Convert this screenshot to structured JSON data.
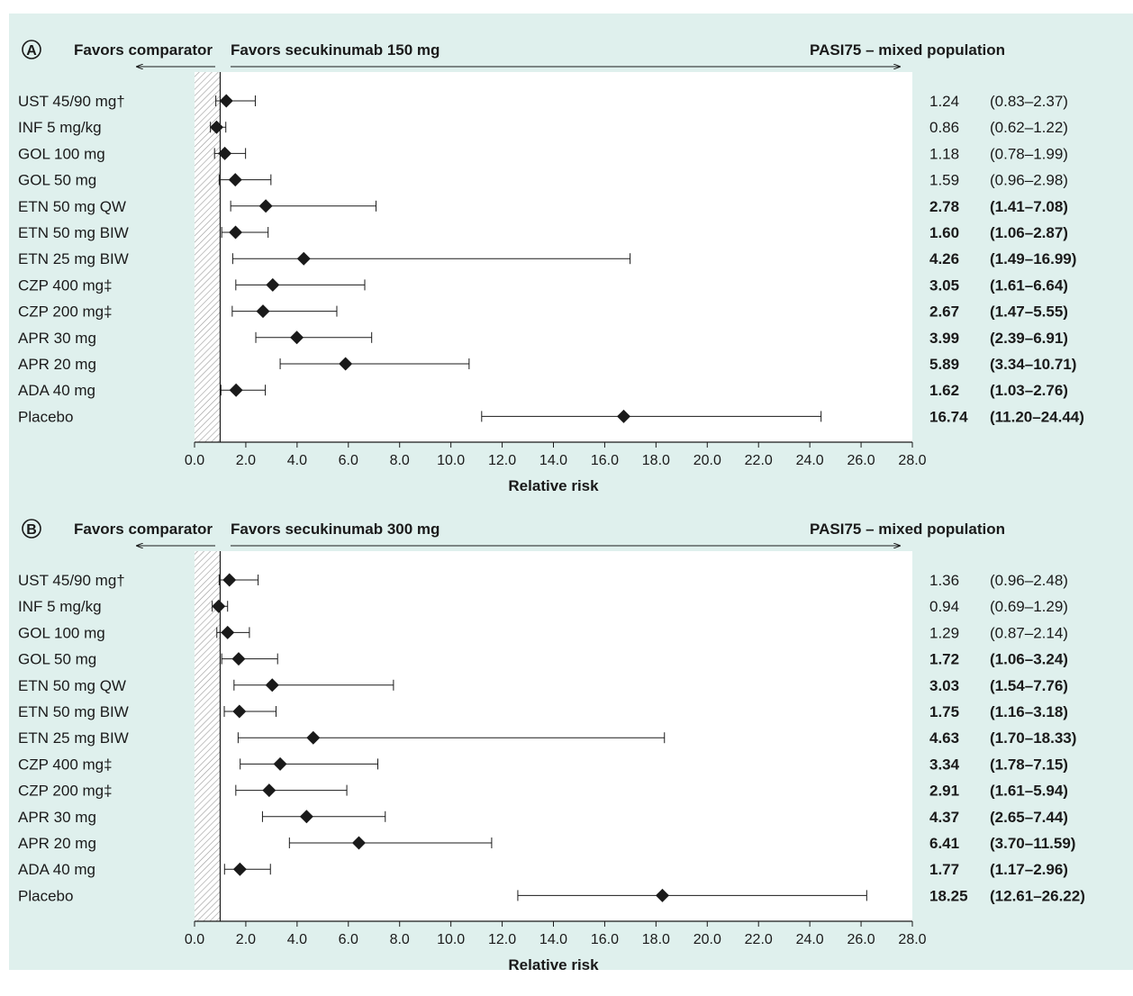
{
  "colors": {
    "background": "#dff0ed",
    "plot_area": "#ffffff",
    "marker": "#1a1a1a",
    "text": "#1a1a1a"
  },
  "chart_data": [
    {
      "type": "forest",
      "panel_label": "A",
      "left_header": "Favors comparator",
      "right_header": "Favors secukinumab 150 mg",
      "title": "PASI75 – mixed population",
      "xlabel": "Relative risk",
      "xlim": [
        0,
        28
      ],
      "xticks": [
        "0.0",
        "2.0",
        "4.0",
        "6.0",
        "8.0",
        "10.0",
        "12.0",
        "14.0",
        "16.0",
        "18.0",
        "20.0",
        "22.0",
        "24.0",
        "26.0",
        "28.0"
      ],
      "reference_line": 1,
      "rows": [
        {
          "label": "UST 45/90 mg†",
          "rr": 1.24,
          "lo": 0.83,
          "hi": 2.37,
          "rr_text": "1.24",
          "ci_text": "(0.83–2.37)",
          "bold": false
        },
        {
          "label": "INF 5 mg/kg",
          "rr": 0.86,
          "lo": 0.62,
          "hi": 1.22,
          "rr_text": "0.86",
          "ci_text": "(0.62–1.22)",
          "bold": false
        },
        {
          "label": "GOL 100 mg",
          "rr": 1.18,
          "lo": 0.78,
          "hi": 1.99,
          "rr_text": "1.18",
          "ci_text": "(0.78–1.99)",
          "bold": false
        },
        {
          "label": "GOL 50 mg",
          "rr": 1.59,
          "lo": 0.96,
          "hi": 2.98,
          "rr_text": "1.59",
          "ci_text": "(0.96–2.98)",
          "bold": false
        },
        {
          "label": "ETN 50 mg QW",
          "rr": 2.78,
          "lo": 1.41,
          "hi": 7.08,
          "rr_text": "2.78",
          "ci_text": "(1.41–7.08)",
          "bold": true
        },
        {
          "label": "ETN 50 mg BIW",
          "rr": 1.6,
          "lo": 1.06,
          "hi": 2.87,
          "rr_text": "1.60",
          "ci_text": "(1.06–2.87)",
          "bold": true
        },
        {
          "label": "ETN 25 mg BIW",
          "rr": 4.26,
          "lo": 1.49,
          "hi": 16.99,
          "rr_text": "4.26",
          "ci_text": "(1.49–16.99)",
          "bold": true
        },
        {
          "label": "CZP 400 mg‡",
          "rr": 3.05,
          "lo": 1.61,
          "hi": 6.64,
          "rr_text": "3.05",
          "ci_text": "(1.61–6.64)",
          "bold": true
        },
        {
          "label": "CZP 200 mg‡",
          "rr": 2.67,
          "lo": 1.47,
          "hi": 5.55,
          "rr_text": "2.67",
          "ci_text": "(1.47–5.55)",
          "bold": true
        },
        {
          "label": "APR 30 mg",
          "rr": 3.99,
          "lo": 2.39,
          "hi": 6.91,
          "rr_text": "3.99",
          "ci_text": "(2.39–6.91)",
          "bold": true
        },
        {
          "label": "APR 20 mg",
          "rr": 5.89,
          "lo": 3.34,
          "hi": 10.71,
          "rr_text": "5.89",
          "ci_text": "(3.34–10.71)",
          "bold": true
        },
        {
          "label": "ADA 40 mg",
          "rr": 1.62,
          "lo": 1.03,
          "hi": 2.76,
          "rr_text": "1.62",
          "ci_text": "(1.03–2.76)",
          "bold": true
        },
        {
          "label": "Placebo",
          "rr": 16.74,
          "lo": 11.2,
          "hi": 24.44,
          "rr_text": "16.74",
          "ci_text": "(11.20–24.44)",
          "bold": true
        }
      ]
    },
    {
      "type": "forest",
      "panel_label": "B",
      "left_header": "Favors comparator",
      "right_header": "Favors secukinumab 300 mg",
      "title": "PASI75 – mixed population",
      "xlabel": "Relative risk",
      "xlim": [
        0,
        28
      ],
      "xticks": [
        "0.0",
        "2.0",
        "4.0",
        "6.0",
        "8.0",
        "10.0",
        "12.0",
        "14.0",
        "16.0",
        "18.0",
        "20.0",
        "22.0",
        "24.0",
        "26.0",
        "28.0"
      ],
      "reference_line": 1,
      "rows": [
        {
          "label": "UST 45/90 mg†",
          "rr": 1.36,
          "lo": 0.96,
          "hi": 2.48,
          "rr_text": "1.36",
          "ci_text": "(0.96–2.48)",
          "bold": false
        },
        {
          "label": "INF 5 mg/kg",
          "rr": 0.94,
          "lo": 0.69,
          "hi": 1.29,
          "rr_text": "0.94",
          "ci_text": "(0.69–1.29)",
          "bold": false
        },
        {
          "label": "GOL 100 mg",
          "rr": 1.29,
          "lo": 0.87,
          "hi": 2.14,
          "rr_text": "1.29",
          "ci_text": "(0.87–2.14)",
          "bold": false
        },
        {
          "label": "GOL 50 mg",
          "rr": 1.72,
          "lo": 1.06,
          "hi": 3.24,
          "rr_text": "1.72",
          "ci_text": "(1.06–3.24)",
          "bold": true
        },
        {
          "label": "ETN 50 mg QW",
          "rr": 3.03,
          "lo": 1.54,
          "hi": 7.76,
          "rr_text": "3.03",
          "ci_text": "(1.54–7.76)",
          "bold": true
        },
        {
          "label": "ETN 50 mg BIW",
          "rr": 1.75,
          "lo": 1.16,
          "hi": 3.18,
          "rr_text": "1.75",
          "ci_text": "(1.16–3.18)",
          "bold": true
        },
        {
          "label": "ETN 25 mg BIW",
          "rr": 4.63,
          "lo": 1.7,
          "hi": 18.33,
          "rr_text": "4.63",
          "ci_text": "(1.70–18.33)",
          "bold": true
        },
        {
          "label": "CZP 400 mg‡",
          "rr": 3.34,
          "lo": 1.78,
          "hi": 7.15,
          "rr_text": "3.34",
          "ci_text": "(1.78–7.15)",
          "bold": true
        },
        {
          "label": "CZP 200 mg‡",
          "rr": 2.91,
          "lo": 1.61,
          "hi": 5.94,
          "rr_text": "2.91",
          "ci_text": "(1.61–5.94)",
          "bold": true
        },
        {
          "label": "APR 30 mg",
          "rr": 4.37,
          "lo": 2.65,
          "hi": 7.44,
          "rr_text": "4.37",
          "ci_text": "(2.65–7.44)",
          "bold": true
        },
        {
          "label": "APR 20 mg",
          "rr": 6.41,
          "lo": 3.7,
          "hi": 11.59,
          "rr_text": "6.41",
          "ci_text": "(3.70–11.59)",
          "bold": true
        },
        {
          "label": "ADA 40 mg",
          "rr": 1.77,
          "lo": 1.17,
          "hi": 2.96,
          "rr_text": "1.77",
          "ci_text": "(1.17–2.96)",
          "bold": true
        },
        {
          "label": "Placebo",
          "rr": 18.25,
          "lo": 12.61,
          "hi": 26.22,
          "rr_text": "18.25",
          "ci_text": "(12.61–26.22)",
          "bold": true
        }
      ]
    }
  ]
}
